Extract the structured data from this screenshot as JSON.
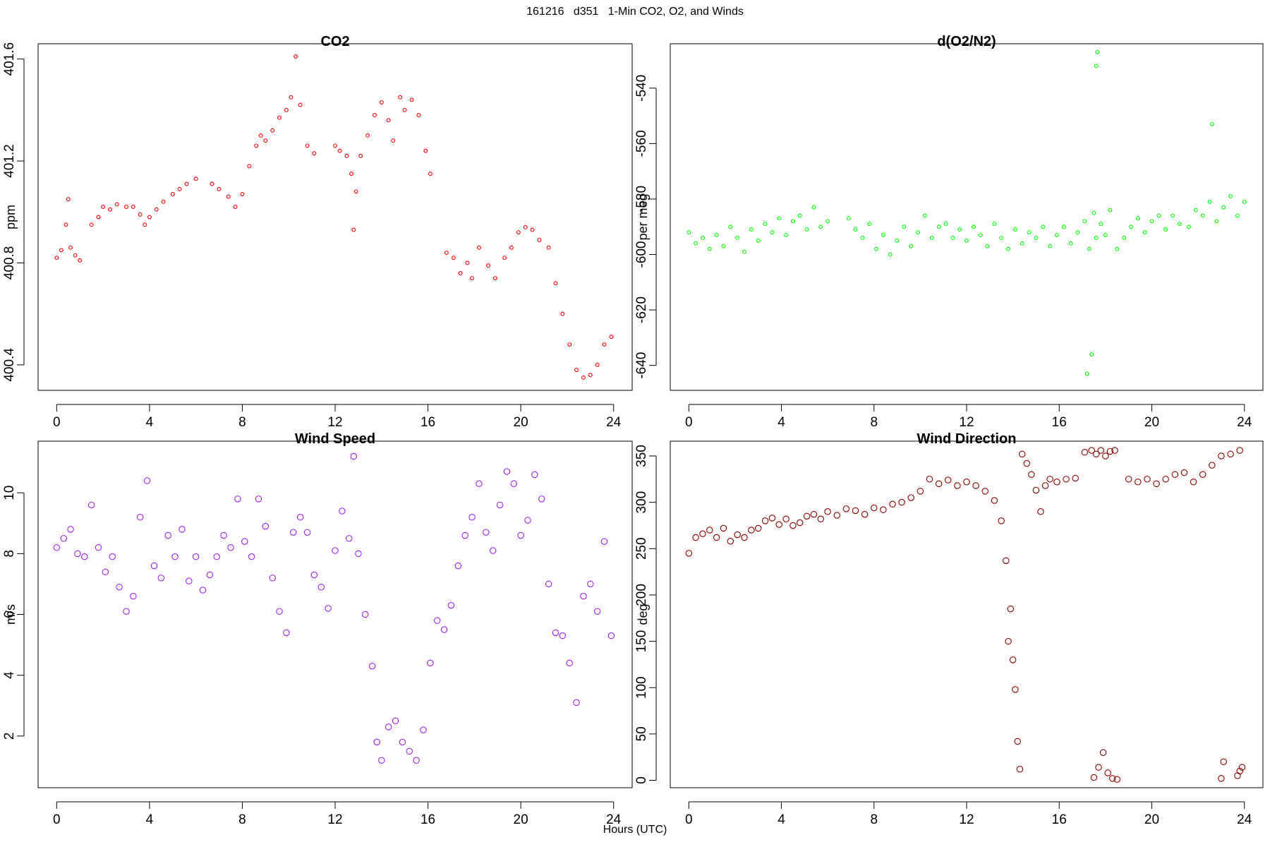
{
  "title": "161216   d351   1-Min CO2, O2, and Winds",
  "xlabel": "Hours (UTC)",
  "chart_data": [
    {
      "type": "scatter",
      "title": "CO2",
      "ylabel": "ppm",
      "color": "#ff0000",
      "marker": "open-circle",
      "xlim": [
        -0.8,
        24.8
      ],
      "ylim": [
        400.3,
        401.66
      ],
      "xticks": [
        0,
        4,
        8,
        12,
        16,
        20,
        24
      ],
      "yticks": [
        400.4,
        400.8,
        401.2,
        401.6
      ],
      "yticklabels": [
        "400.4",
        "400.8",
        "401.2",
        "401.6"
      ],
      "series": [
        {
          "x": [
            0.0,
            0.2,
            0.4,
            0.5,
            0.6,
            0.8,
            1.0,
            1.5,
            1.8,
            2.0,
            2.3,
            2.6,
            3.0,
            3.3,
            3.6,
            3.8,
            4.0,
            4.3,
            4.6,
            5.0,
            5.3,
            5.6,
            6.0,
            6.7,
            7.0,
            7.4,
            7.7,
            8.0,
            8.3,
            8.6,
            8.8,
            9.0,
            9.3,
            9.6,
            9.9,
            10.1,
            10.3,
            10.5,
            10.8,
            11.1,
            12.0,
            12.2,
            12.5,
            12.7,
            12.8,
            12.9,
            13.1,
            13.4,
            13.7,
            14.0,
            14.3,
            14.5,
            14.8,
            15.0,
            15.3,
            15.6,
            15.9,
            16.1,
            16.8,
            17.1,
            17.4,
            17.7,
            17.9,
            18.2,
            18.6,
            18.9,
            19.3,
            19.6,
            19.9,
            20.2,
            20.5,
            20.8,
            21.2,
            21.5,
            21.8,
            22.1,
            22.4,
            22.7,
            23.0,
            23.3,
            23.6,
            23.9
          ],
          "y": [
            400.82,
            400.85,
            400.95,
            401.05,
            400.86,
            400.83,
            400.81,
            400.95,
            400.98,
            401.02,
            401.01,
            401.03,
            401.02,
            401.02,
            400.99,
            400.95,
            400.98,
            401.01,
            401.04,
            401.07,
            401.09,
            401.11,
            401.13,
            401.11,
            401.09,
            401.06,
            401.02,
            401.07,
            401.18,
            401.26,
            401.3,
            401.28,
            401.32,
            401.37,
            401.4,
            401.45,
            401.61,
            401.42,
            401.26,
            401.23,
            401.26,
            401.24,
            401.22,
            401.15,
            400.93,
            401.08,
            401.22,
            401.3,
            401.38,
            401.43,
            401.36,
            401.28,
            401.45,
            401.4,
            401.44,
            401.38,
            401.24,
            401.15,
            400.84,
            400.82,
            400.76,
            400.8,
            400.74,
            400.86,
            400.79,
            400.74,
            400.82,
            400.86,
            400.92,
            400.94,
            400.93,
            400.89,
            400.86,
            400.72,
            400.6,
            400.48,
            400.38,
            400.35,
            400.36,
            400.4,
            400.48,
            400.51
          ]
        }
      ]
    },
    {
      "type": "scatter",
      "title": "d(O2/N2)",
      "ylabel": "per meg",
      "color": "#00ff00",
      "marker": "open-circle",
      "xlim": [
        -0.8,
        24.8
      ],
      "ylim": [
        -649,
        -524
      ],
      "xticks": [
        0,
        4,
        8,
        12,
        16,
        20,
        24
      ],
      "yticks": [
        -640,
        -620,
        -600,
        -580,
        -560,
        -540
      ],
      "yticklabels": [
        "-640",
        "-620",
        "-600",
        "-580",
        "-560",
        "-540"
      ],
      "series": [
        {
          "x": [
            0.0,
            0.3,
            0.6,
            0.9,
            1.2,
            1.5,
            1.8,
            2.1,
            2.4,
            2.7,
            3.0,
            3.3,
            3.6,
            3.9,
            4.2,
            4.5,
            4.8,
            5.1,
            5.4,
            5.7,
            6.0,
            6.9,
            7.2,
            7.5,
            7.8,
            8.1,
            8.4,
            8.7,
            9.0,
            9.3,
            9.6,
            9.9,
            10.2,
            10.5,
            10.8,
            11.1,
            11.4,
            11.7,
            12.0,
            12.3,
            12.6,
            12.9,
            13.2,
            13.5,
            13.8,
            14.1,
            14.4,
            14.7,
            15.0,
            15.3,
            15.6,
            15.9,
            16.2,
            16.5,
            16.8,
            17.1,
            17.3,
            17.5,
            17.6,
            17.8,
            18.0,
            18.2,
            18.5,
            18.8,
            19.1,
            19.4,
            19.7,
            20.0,
            20.3,
            20.6,
            20.9,
            21.2,
            21.6,
            21.9,
            22.2,
            22.5,
            22.8,
            23.1,
            23.4,
            23.7,
            24.0,
            17.2,
            17.4,
            17.6,
            17.65,
            22.6
          ],
          "y": [
            -592,
            -596,
            -594,
            -598,
            -593,
            -597,
            -590,
            -594,
            -599,
            -591,
            -595,
            -589,
            -592,
            -587,
            -593,
            -588,
            -586,
            -591,
            -583,
            -590,
            -588,
            -587,
            -591,
            -594,
            -589,
            -598,
            -593,
            -600,
            -595,
            -590,
            -597,
            -592,
            -586,
            -594,
            -590,
            -589,
            -594,
            -591,
            -595,
            -590,
            -593,
            -597,
            -589,
            -594,
            -598,
            -591,
            -596,
            -592,
            -594,
            -590,
            -597,
            -593,
            -590,
            -596,
            -592,
            -588,
            -598,
            -585,
            -594,
            -589,
            -593,
            -584,
            -598,
            -594,
            -590,
            -587,
            -592,
            -588,
            -586,
            -591,
            -586,
            -589,
            -590,
            -584,
            -586,
            -581,
            -588,
            -583,
            -579,
            -586,
            -581,
            -643,
            -636,
            -532,
            -527,
            -553
          ]
        }
      ]
    },
    {
      "type": "scatter",
      "title": "Wind Speed",
      "ylabel": "m/s",
      "color": "#a020f0",
      "marker": "open-circle",
      "xlim": [
        -0.8,
        24.8
      ],
      "ylim": [
        0.3,
        11.7
      ],
      "xticks": [
        0,
        4,
        8,
        12,
        16,
        20,
        24
      ],
      "yticks": [
        2,
        4,
        6,
        8,
        10
      ],
      "yticklabels": [
        "2",
        "4",
        "6",
        "8",
        "10"
      ],
      "series": [
        {
          "x": [
            0.0,
            0.3,
            0.6,
            0.9,
            1.2,
            1.5,
            1.8,
            2.1,
            2.4,
            2.7,
            3.0,
            3.3,
            3.6,
            3.9,
            4.2,
            4.5,
            4.8,
            5.1,
            5.4,
            5.7,
            6.0,
            6.3,
            6.6,
            6.9,
            7.2,
            7.5,
            7.8,
            8.1,
            8.4,
            8.7,
            9.0,
            9.3,
            9.6,
            9.9,
            10.2,
            10.5,
            10.8,
            11.1,
            11.4,
            11.7,
            12.0,
            12.3,
            12.6,
            12.8,
            13.0,
            13.3,
            13.6,
            13.8,
            14.0,
            14.3,
            14.6,
            14.9,
            15.2,
            15.5,
            15.8,
            16.1,
            16.4,
            16.7,
            17.0,
            17.3,
            17.6,
            17.9,
            18.2,
            18.5,
            18.8,
            19.1,
            19.4,
            19.7,
            20.0,
            20.3,
            20.6,
            20.9,
            21.2,
            21.5,
            21.8,
            22.1,
            22.4,
            22.7,
            23.0,
            23.3,
            23.6,
            23.9
          ],
          "y": [
            8.2,
            8.5,
            8.8,
            8.0,
            7.9,
            9.6,
            8.2,
            7.4,
            7.9,
            6.9,
            6.1,
            6.6,
            9.2,
            10.4,
            7.6,
            7.2,
            8.6,
            7.9,
            8.8,
            7.1,
            7.9,
            6.8,
            7.3,
            7.9,
            8.6,
            8.2,
            9.8,
            8.4,
            7.9,
            9.8,
            8.9,
            7.2,
            6.1,
            5.4,
            8.7,
            9.2,
            8.7,
            7.3,
            6.9,
            6.2,
            8.1,
            9.4,
            8.5,
            11.2,
            8.0,
            6.0,
            4.3,
            1.8,
            1.2,
            2.3,
            2.5,
            1.8,
            1.5,
            1.2,
            2.2,
            4.4,
            5.8,
            5.5,
            6.3,
            7.6,
            8.6,
            9.2,
            10.3,
            8.7,
            8.1,
            9.6,
            10.7,
            10.3,
            8.6,
            9.1,
            10.6,
            9.8,
            7.0,
            5.4,
            5.3,
            4.4,
            3.1,
            6.6,
            7.0,
            6.1,
            8.4,
            5.3
          ]
        }
      ]
    },
    {
      "type": "scatter",
      "title": "Wind Direction",
      "ylabel": "deg",
      "color": "#8b0000",
      "marker": "open-circle",
      "xlim": [
        -0.8,
        24.8
      ],
      "ylim": [
        -8,
        366
      ],
      "xticks": [
        0,
        4,
        8,
        12,
        16,
        20,
        24
      ],
      "yticks": [
        0,
        50,
        100,
        150,
        200,
        250,
        300,
        350
      ],
      "yticklabels": [
        "0",
        "50",
        "100",
        "150",
        "200",
        "250",
        "300",
        "350"
      ],
      "series": [
        {
          "x": [
            0.0,
            0.3,
            0.6,
            0.9,
            1.2,
            1.5,
            1.8,
            2.1,
            2.4,
            2.7,
            3.0,
            3.3,
            3.6,
            3.9,
            4.2,
            4.5,
            4.8,
            5.1,
            5.4,
            5.7,
            6.0,
            6.4,
            6.8,
            7.2,
            7.6,
            8.0,
            8.4,
            8.8,
            9.2,
            9.6,
            10.0,
            10.4,
            10.8,
            11.2,
            11.6,
            12.0,
            12.4,
            12.8,
            13.2,
            13.5,
            13.7,
            13.8,
            13.9,
            14.0,
            14.1,
            14.2,
            14.3,
            14.4,
            14.6,
            14.8,
            15.0,
            15.2,
            15.4,
            15.6,
            15.9,
            16.3,
            16.7,
            17.1,
            17.4,
            17.6,
            17.8,
            18.0,
            18.2,
            18.4,
            17.5,
            17.7,
            17.9,
            18.1,
            18.3,
            18.5,
            19.0,
            19.4,
            19.8,
            20.2,
            20.6,
            21.0,
            21.4,
            21.8,
            22.2,
            22.6,
            23.0,
            23.4,
            23.8,
            23.0,
            23.1,
            23.7,
            23.8,
            23.9
          ],
          "y": [
            245,
            262,
            266,
            270,
            262,
            272,
            258,
            265,
            262,
            270,
            272,
            280,
            283,
            276,
            282,
            275,
            278,
            285,
            287,
            282,
            290,
            286,
            293,
            291,
            287,
            294,
            292,
            298,
            300,
            305,
            312,
            325,
            320,
            324,
            318,
            322,
            318,
            312,
            302,
            280,
            237,
            150,
            185,
            130,
            98,
            42,
            12,
            352,
            342,
            330,
            313,
            290,
            318,
            325,
            322,
            325,
            326,
            354,
            356,
            352,
            356,
            350,
            355,
            356,
            3,
            14,
            30,
            8,
            2,
            1,
            325,
            322,
            325,
            320,
            325,
            330,
            332,
            322,
            330,
            340,
            350,
            352,
            356,
            2,
            20,
            5,
            10,
            14
          ]
        }
      ]
    }
  ]
}
